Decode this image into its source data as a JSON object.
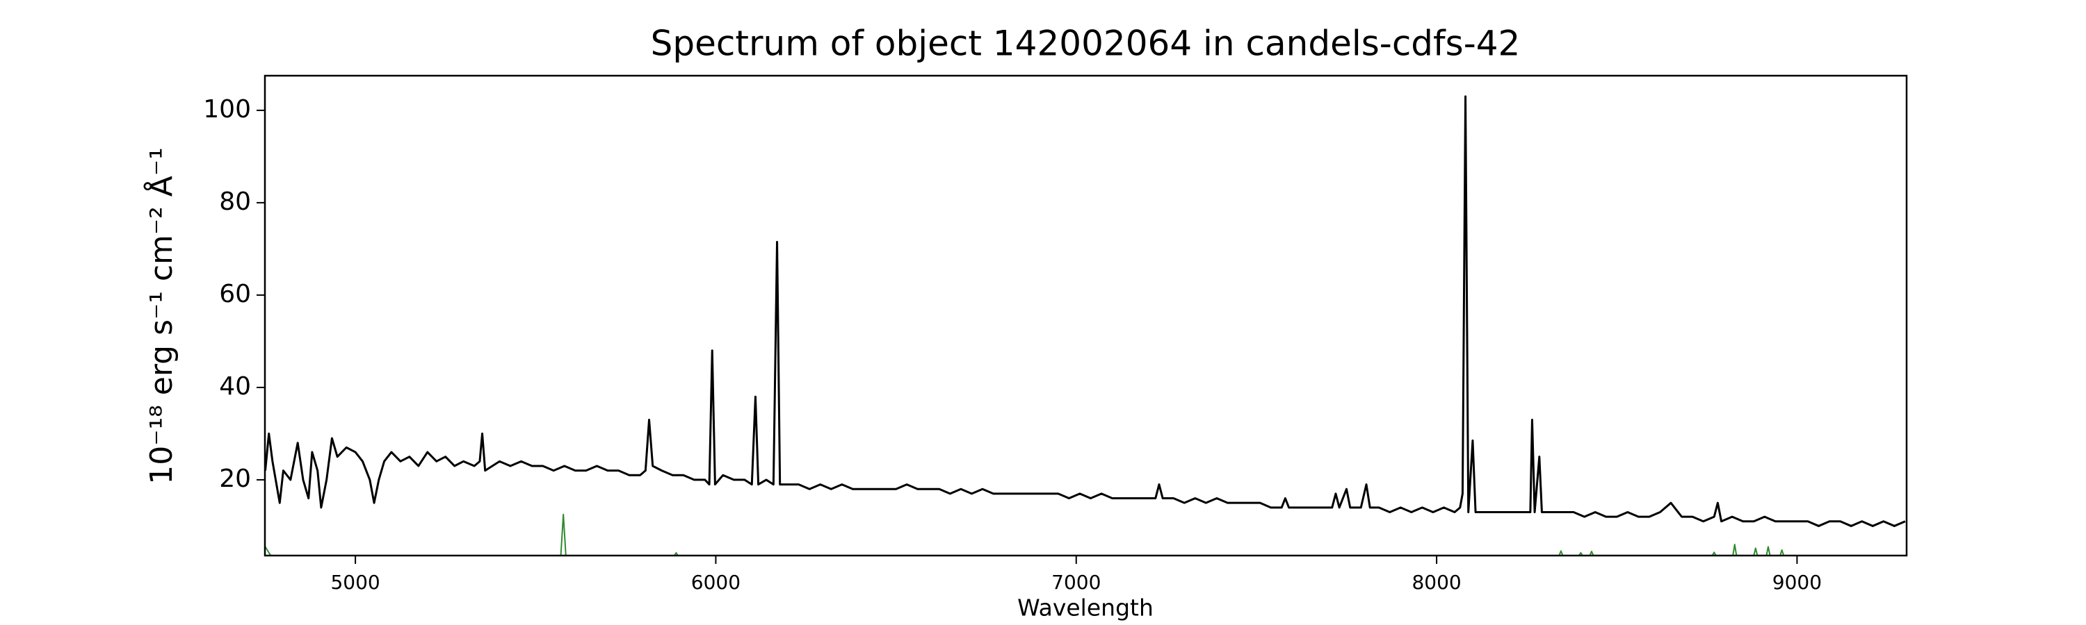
{
  "chart_data": {
    "type": "line",
    "title": "Spectrum of object 142002064 in candels-cdfs-42",
    "x_label": "Wavelength",
    "y_label": "10⁻¹⁸ erg s⁻¹ cm⁻² Å⁻¹",
    "xlim": [
      4749,
      9304
    ],
    "ylim": [
      3.6,
      107.5
    ],
    "xticks": [
      5000,
      6000,
      7000,
      8000,
      9000
    ],
    "yticks": [
      20,
      40,
      60,
      80,
      100
    ],
    "grid": false,
    "series": [
      {
        "color": "#000000",
        "x": [
          4750,
          4760,
          4770,
          4790,
          4800,
          4820,
          4840,
          4855,
          4870,
          4880,
          4895,
          4905,
          4920,
          4935,
          4950,
          4975,
          5000,
          5020,
          5040,
          5052,
          5065,
          5080,
          5100,
          5125,
          5150,
          5175,
          5200,
          5225,
          5250,
          5275,
          5300,
          5330,
          5345,
          5352,
          5360,
          5380,
          5400,
          5430,
          5460,
          5490,
          5520,
          5550,
          5580,
          5610,
          5640,
          5670,
          5700,
          5730,
          5760,
          5790,
          5805,
          5815,
          5825,
          5850,
          5880,
          5910,
          5940,
          5970,
          5982,
          5990,
          5998,
          6020,
          6050,
          6080,
          6100,
          6110,
          6118,
          6140,
          6160,
          6170,
          6178,
          6200,
          6230,
          6260,
          6290,
          6320,
          6350,
          6380,
          6410,
          6440,
          6470,
          6500,
          6530,
          6560,
          6590,
          6620,
          6650,
          6680,
          6710,
          6740,
          6770,
          6800,
          6830,
          6860,
          6890,
          6920,
          6950,
          6980,
          7010,
          7040,
          7070,
          7100,
          7130,
          7160,
          7190,
          7220,
          7230,
          7240,
          7270,
          7300,
          7330,
          7360,
          7390,
          7420,
          7450,
          7480,
          7510,
          7540,
          7570,
          7580,
          7590,
          7620,
          7650,
          7680,
          7710,
          7720,
          7730,
          7750,
          7760,
          7790,
          7805,
          7815,
          7840,
          7870,
          7900,
          7930,
          7960,
          7990,
          8020,
          8050,
          8065,
          8072,
          8080,
          8088,
          8100,
          8108,
          8130,
          8160,
          8190,
          8220,
          8250,
          8260,
          8265,
          8272,
          8285,
          8292,
          8320,
          8350,
          8380,
          8410,
          8440,
          8470,
          8500,
          8530,
          8560,
          8590,
          8620,
          8650,
          8680,
          8710,
          8740,
          8770,
          8780,
          8790,
          8820,
          8850,
          8880,
          8910,
          8940,
          8970,
          9000,
          9030,
          9060,
          9090,
          9120,
          9150,
          9180,
          9210,
          9240,
          9270,
          9300
        ],
        "values": [
          22,
          30,
          24,
          15,
          22,
          20,
          28,
          20,
          16,
          26,
          22,
          14,
          20,
          29,
          25,
          27,
          26,
          24,
          20,
          15,
          20,
          24,
          26,
          24,
          25,
          23,
          26,
          24,
          25,
          23,
          24,
          23,
          24,
          30,
          22,
          23,
          24,
          23,
          24,
          23,
          23,
          22,
          23,
          22,
          22,
          23,
          22,
          22,
          21,
          21,
          22,
          33,
          23,
          22,
          21,
          21,
          20,
          20,
          19,
          48,
          19,
          21,
          20,
          20,
          19,
          38,
          19,
          20,
          19,
          71.5,
          19,
          19,
          19,
          18,
          19,
          18,
          19,
          18,
          18,
          18,
          18,
          18,
          19,
          18,
          18,
          18,
          17,
          18,
          17,
          18,
          17,
          17,
          17,
          17,
          17,
          17,
          17,
          16,
          17,
          16,
          17,
          16,
          16,
          16,
          16,
          16,
          19,
          16,
          16,
          15,
          16,
          15,
          16,
          15,
          15,
          15,
          15,
          14,
          14,
          16,
          14,
          14,
          14,
          14,
          14,
          17,
          14,
          18,
          14,
          14,
          19,
          14,
          14,
          13,
          14,
          13,
          14,
          13,
          14,
          13,
          14,
          17,
          103,
          13,
          28.5,
          13,
          13,
          13,
          13,
          13,
          13,
          13,
          33,
          13,
          25,
          13,
          13,
          13,
          13,
          12,
          13,
          12,
          12,
          13,
          12,
          12,
          13,
          15,
          12,
          12,
          11,
          12,
          15,
          11,
          12,
          11,
          11,
          12,
          11,
          11,
          11,
          11,
          10,
          11,
          11,
          10,
          11,
          10,
          11,
          10,
          11
        ]
      },
      {
        "color": "#2e8b2e",
        "x": [
          4750,
          4765,
          5570,
          5577,
          5584,
          5885,
          5890,
          5895,
          8340,
          8345,
          8350,
          8395,
          8400,
          8405,
          8425,
          8430,
          8435,
          8765,
          8770,
          8775,
          8822,
          8827,
          8832,
          8880,
          8885,
          8890,
          8915,
          8920,
          8925,
          8953,
          8958,
          8963,
          9300
        ],
        "values": [
          5.5,
          3.6,
          3.6,
          12.5,
          3.6,
          3.6,
          4.2,
          3.6,
          3.6,
          4.6,
          3.6,
          3.6,
          4.2,
          3.6,
          3.6,
          4.5,
          3.6,
          3.6,
          4.3,
          3.6,
          3.6,
          6,
          3.6,
          3.6,
          5.2,
          3.6,
          3.6,
          5.5,
          3.6,
          3.6,
          4.8,
          3.6,
          3.6
        ]
      }
    ]
  }
}
